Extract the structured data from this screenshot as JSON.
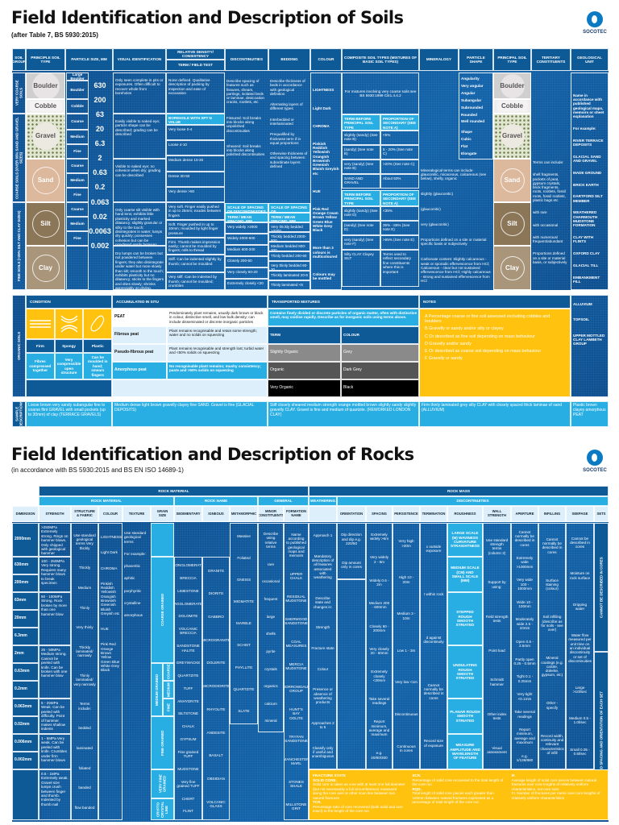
{
  "soils": {
    "title": "Field Identification and Description of Soils",
    "subtitle": "(after Table 7, BS 5930:2015)",
    "logo": "SOCOTEC",
    "headers": [
      "SOIL GROUP",
      "PRINCIPLE SOIL TYPE",
      "PARTICLE SIZE, MM",
      "VISUAL IDENTIFICATION",
      "RELATIVE DENSITY/ CONSISTENCY",
      "TERM / FIELD TEST",
      "DISCONTINUITIES",
      "BEDDING",
      "COLOUR",
      "COMPOSITE SOIL TYPES (MIXTURES OF BASIC SOIL TYPES)",
      "MINERALOGY",
      "PARTICLE SHAPE",
      "PRINCIPAL SOIL TYPE",
      "TERTIARY CONSTITUENTS",
      "GEOLOGICAL UNIT"
    ],
    "groups": [
      "VERY COARSE SOILS",
      "COARSE SOILS (OVER 65% SAND AND GRAVEL SIZES)",
      "FINE SOILS (>35% SILT AND CLAY SIZES)"
    ],
    "types": [
      "Boulder",
      "Cobble",
      "Gravel",
      "Sand",
      "Silt",
      "Clay"
    ],
    "size_terms": [
      "Large Boulder",
      "Boulder",
      "Cobble",
      "Coarse",
      "Medium",
      "Fine",
      "Coarse",
      "Medium",
      "Fine",
      "Coarse",
      "Medium",
      "Fine"
    ],
    "sizes": [
      "630",
      "200",
      "63",
      "20",
      "6.3",
      "2",
      "0.63",
      "0.2",
      "0.063",
      "0.02",
      "0.0063",
      "0.002"
    ],
    "visual": [
      "Only seen complete in pits or exposures. Often difficult to recover whole from boreholes",
      "Easily visible to naked eye; particle shape can be described; grading can be described",
      "Visible to naked eye; no cohesion when dry; grading can be described",
      "Only coarse silt visible with hand lens; exhibits little plasticity and marked dilatancy; slightly granular or silky to the touch; disintegrates in water; lumps dry quickly; possesses cohesion but can be powdered easily between fingers",
      "Dry lumps can be broken but not powdered between fingers; they also disintegrate under water but more slowly than silt; smooth to the touch; exhibits plasticity but no dilatancy; sticks to the fingers and dries slowly; shrinks appreciably on drying, usually showing cracks"
    ],
    "density": {
      "very_coarse": "None defined. Qualitative description of packing by inspection and ease of excavation",
      "spt_header": "BOREHOLE WITH SPT N VALUE",
      "coarse": [
        "Very loose 0-4",
        "Loose 4-10",
        "Medium dense 10-30",
        "Dense 30-50",
        "Very dense >50"
      ],
      "fine": [
        "Very soft. Finger easily pushed in up to 25mm; exudes between fingers",
        "Soft. Finger pushed in up to 10mm; moulded by light finger pressure",
        "Firm. Thumb makes impression easily; cannot be moulded by fingers; rolls to thread",
        "Stiff. Can be indented slightly by thumb; cannot be moulded",
        "Very stiff. Can be indented by thumb; cannot be moulded; crumbles"
      ]
    },
    "discontinuities": {
      "text": [
        "Describe spacing of features such as fissures, shears, partings, isolated beds or laminae, desiccation cracks, rootlets, etc",
        "Fissured: Soil breaks into blocks along unpolished discontinuities",
        "Sheared: Soil breaks into blocks along polished discontinuities"
      ],
      "scale_header": "SCALE OF SPACING OF DISCONTINUITIES",
      "term_header": "TERM / MEAN SPACING, MM",
      "scale": [
        "Very widely >2000",
        "Widely 2000-600",
        "Medium 600-200",
        "Closely 200-60",
        "Very closely 60-20",
        "Extremely closely <20"
      ]
    },
    "bedding": {
      "text": [
        "Describe thickness of beds in accordance with geological definition",
        "Alternating layers of different types",
        "Interbedded or interlaminated",
        "Prequalified by thickness term if in equal proportions",
        "Otherwise thickness of and spacing between subordinate layers defined"
      ],
      "scale_header": "SCALE OF SPACING OF DISCONTINUITIES",
      "term_header": "TERM / MEAN SPACING, MM",
      "scale": [
        "Very thickly bedded >2000",
        "Thickly bedded 2000-600",
        "Medium bedded 600-200",
        "Thinly bedded 200-60",
        "Very thinly bedded 60-20",
        "Thickly laminated 20-6",
        "Thinly laminated <6"
      ]
    },
    "colour": [
      "LIGHTNESS",
      "Light Dark",
      "CHROMA",
      "Pinkish Reddish Yellowish Orangish Brownish Greenish Bluish Greyish etc",
      "HUE",
      "Pink Red Orange Cream Brown Yellow Green Blue White Grey Black",
      "More than 3 colours is multicoloured",
      "Colours may be mottled"
    ],
    "composite": {
      "intro": "For mixtures involving very coarse soils see BS 5930:1999 Cl41.4.4.2",
      "head": [
        "TERM BEFORE PRINCIPAL SOIL TYPE",
        "PROPORTION OF SECONDARY (SEE NOTE A)"
      ],
      "coarse": [
        [
          "slightly (sandy) (See note B)",
          "<5%"
        ],
        [
          "(sandy) (See note B)",
          "5 - 20% (See note C)"
        ],
        [
          "very (sandy) (See note B)",
          ">20% (See note C)"
        ],
        [
          "SAND AND GRAVEL",
          "About 50%"
        ]
      ],
      "fine": [
        [
          "slightly (sandy) (See note D)",
          "<35%"
        ],
        [
          "(sandy) (See note D)",
          "35% - 65% (See note E)"
        ],
        [
          "very (sandy) (See note F)",
          ">65% (See note E)"
        ],
        [
          "Silty CLAY  Clayey SILT",
          "Terms used to reflect secondary fine constituents where this is important"
        ]
      ]
    },
    "mineralogy": [
      "Mineralogical terms can include: glauconitic, micaceous, calcareous (see below), shelly, organic",
      "slightly (glauconitic)",
      "(glauconitic)",
      "very (glauconitic)",
      "Proportions defined on a site or material specific basis or subjectively",
      "Carbonate content: Slightly calcareous - weak or sporadic effervescence from HCl; Calcareous - clear but not sustained effervescence from HCl; Highly calcareous - strong and sustained effervescence from HCl"
    ],
    "shape": [
      "Angularity",
      "Very angular",
      "Angular",
      "Subangular",
      "Subrounded",
      "Rounded",
      "Well rounded",
      "",
      "Shape",
      "Cubic",
      "Flat",
      "Elongate"
    ],
    "tertiary": [
      "Terms can include:",
      "shell fragments, pockets of peat, gypsum crystals, brick fragments, roots, rootlets, fossil roots, fossil rootlets, plastic bags etc",
      "with rare",
      "with occasional",
      "with numerous/ frequent/abundant",
      "Proportions defined on a site or material basis, or subjectively"
    ],
    "geological": [
      "Name in accordance with published geological maps, memoirs or sheet explanation",
      "For example:",
      "RIVER TERRACE DEPOSITS",
      "GLACIAL SAND AND GRAVEL",
      "MADE GROUND",
      "BRICK EARTH",
      "DARTFORD SILT MEMBER",
      "WEATHERED CHARMOUTH MUDSTONE FORMATION",
      "CLAY WITH FLINTS",
      "OXFORD CLAY",
      "GLACIAL TILL",
      "EMBANKMENT FILL"
    ],
    "geological_organic": [
      "ALLUVIUM",
      "TOPSOIL",
      "UPPER MOTTLED CLAY LAMBETH GROUP"
    ],
    "organic": {
      "label": "ORGANIC SOILS",
      "condition_header": "CONDITION",
      "accumulated_header": "ACCUMULATED IN SITU",
      "transported_header": "TRANSPORTED MIXTURES",
      "notes_header": "NOTES",
      "conditions": [
        {
          "term": "Firm",
          "desc": "Fibres compressed together"
        },
        {
          "term": "Spongy",
          "desc": "Very compressible open structure"
        },
        {
          "term": "Plastic",
          "desc": "Can be moulded in hand; smears fingers"
        }
      ],
      "accumulated": [
        {
          "term": "PEAT",
          "desc": "Predominately plant remains, usually dark brown or black in colour, distinctive smell, and low bulk density; can include disseminated or discrete inorganic particles"
        },
        {
          "term": "Fibrous peat",
          "desc": "Plant remains recognisable and retain some strength; water and no solids on squeezing"
        },
        {
          "term": "Pseudo-fibrous peat",
          "desc": "Plant remains recognisable and strength lost; turbid water and <50% solids on squeezing"
        },
        {
          "term": "Amorphous peat",
          "desc": "No recognisable plant remains; mushy consistency; paste and >50% solids on squeezing"
        }
      ],
      "transported_desc": "Contains finely divided or discrete particles of organic matter, often with distinctive smell, may oxidise rapidly. Describe as for inorganic soils using terms above.",
      "term_header": "TERM",
      "colour_header": "COLOUR",
      "transported": [
        {
          "term": "Slightly Organic",
          "colour": "Grey"
        },
        {
          "term": "Organic",
          "colour": "Dark Grey"
        },
        {
          "term": "Very Organic",
          "colour": "Black"
        }
      ],
      "notes": [
        "A  Percentage coarse or fine soil assessed excluding cobbles and boulders",
        "B  Gravelly or sandy and/or silty or clayey",
        "C  Or described as fine soil depending on mass behaviour",
        "D  Gravelly and/or sandy",
        "E  Or described as coarse soil depending on mass behaviour",
        "F  Gravelly or sandy"
      ]
    },
    "samples": {
      "label": "SAMPLE DESCRIPTIONS",
      "items": [
        "Loose brown very sandy subangular fine to coarse flint GRAVEL with small pockets (up to 30mm) of clay (TERRACE GRAVELS)",
        "Medium dense light brown gravelly clayey fine SAND. Gravel is fine (GLACIAL DEPOSITS)",
        "Stiff closely sheared medium strength orange mottled brown slightly sandy slightly gravelly CLAY. Gravel is fine and medium of quartzite. (REWORKED LONDON CLAY)",
        "Firm thinly laminated grey silty CLAY with closely spaced thick laminae of sand (ALLUVIUM)",
        "Plastic brown clayey amorphous PEAT"
      ]
    },
    "colors": {
      "panel": "#0e5a9e",
      "header": "#0d5a96",
      "light": "#29aee3",
      "yellow": "#ffc20e"
    }
  },
  "rocks": {
    "title": "Field Identification and Description of Rocks",
    "subtitle": "(in accordance with BS 5930:2015 and BS EN ISO 14689-1)",
    "logo": "SOCOTEC",
    "group1": [
      "ROCK MATERIAL",
      "ROCK MASS"
    ],
    "group2": [
      "ROCK MATERIAL",
      "ROCK NAME",
      "GENERAL",
      "WEATHERING",
      "DISCONTINUITIES"
    ],
    "headers": [
      "DIMENSION",
      "STRENGTH",
      "STRUCTURE & FABRIC",
      "COLOUR",
      "TEXTURE",
      "GRAIN SIZE",
      "SEDIMENTARY",
      "IGNEOUS",
      "METAMORPHIC",
      "MINOR CONSTITUENTS",
      "FORMATION NAME",
      "",
      "ORIENTATION",
      "SPACING",
      "PERSISTENCE",
      "TERMINATION",
      "ROUGHNESS",
      "WALL STRENGTH",
      "APERTURE",
      "INFILLING",
      "SEEPAGE",
      "SETS"
    ],
    "dimension": [
      "2000mm",
      "630mm",
      "200mm",
      "63mm",
      "20mm",
      "6.3mm",
      "2mm",
      "0.63mm",
      "0.2mm",
      "0.063mm",
      "0.02mm",
      "0.006mm",
      "0.002mm",
      ""
    ],
    "strength": [
      ">250MPa Extremely strong. Rings on hammer blows. Only chipped with geological hammer",
      "100 - 250MPa Very strong. Requires many hammer blows to break specimen",
      "50 - 100MPa Strong. Rock broken by more than one hammer blow",
      "25 - 50MPa Medium strong. Cannot be peeled with knife. Can be broken with one hammer blow",
      "5 - 25MPa Weak. Can be peeled with difficulty. Point of hammer makes shallow indents",
      "1 - 5MPa Very weak. Can be peeled with knife. Crumbles under firm hammer blows",
      "0.6 - 1MPa Extremely weak. Gravel size lumps crush between finger and thumb. Indented by thumb nail"
    ],
    "structure": [
      "Use standard geological terms Very thickly",
      "Thickly",
      "Medium",
      "Thinly",
      "Very thinly",
      "Thickly laminated/ narrowly",
      "Thinly laminated/ very narrowly",
      "Terms include:",
      "bedded",
      "laminated",
      "foliated",
      "banded",
      "flow banded"
    ],
    "colour": [
      "LIGHTNESS",
      "Light Dark",
      "CHROMA",
      "Pinkish Reddish Yellowish Orangish Brownish Greenish Bluish Greyish etc",
      "HUE",
      "Pink Red Orange Brown Yellow Green Blue White Grey Black"
    ],
    "texture": [
      "Use standard geological terms",
      "For example:",
      "phaneritic",
      "aphitic",
      "porphyritic",
      "crystalline",
      "amorphous"
    ],
    "grain": [
      "COARSE GRAINED",
      "MEDIUM GRAINED",
      "COARSE",
      "MEDIUM",
      "FINE",
      "FINE GRAINED",
      "VERY FINE GRAINED",
      "CRYPTO CRYSTAL LINE"
    ],
    "sedimentary": [
      "CONGLOMERATE",
      "BRECCIA",
      "LIMESTONE",
      "AGGLOMERATE",
      "DOLOMITE",
      "VOLCANIC BRECCIA",
      "SANDSTONE HALITE",
      "GREYWACKE",
      "QUARTZITE",
      "TUFF",
      "ANHYDRITE",
      "SILTSTONE",
      "CHALK",
      "GYPSUM",
      "Fine grained TUFF",
      "MUDSTONE",
      "Very fine grained TUFF",
      "CHERT",
      "FLINT"
    ],
    "igneous": [
      "GRANITE",
      "DIORITE",
      "GABBRO",
      "MICROGRANITE",
      "DOLERITE",
      "MICRODIORITE",
      "RHYOLITE",
      "ANDESITE",
      "BASALT",
      "OBSIDIAN",
      "VOLCANIC GLASS"
    ],
    "metamorphic": [
      "Massive",
      "Foliated",
      "GNEISS",
      "MIGMATITE",
      "MARBLE",
      "SCHIST",
      "PHYLLITE",
      "QUARTZITE",
      "SLATE"
    ],
    "minor": [
      "Describe using relative terms",
      "rare",
      "occasional",
      "frequent",
      "large",
      "shells",
      "pyrite",
      "crystals",
      "organics",
      "calcium",
      "mineral"
    ],
    "formation": [
      "Name according to published geological maps and memoirs",
      "UPPER CHALK",
      "RESIDUAL MUDSTONE",
      "SHERWOOD SANDSTONE",
      "COAL MEASURES",
      "MERCIA MUDSTONE",
      "BORROWDALE GROUP",
      "HUNT'S BAY OOLITE",
      "TRYFAN SANDSTONE",
      "MANCHESTER MARL",
      "STONES SHALE",
      "MILLSTONE GRIT"
    ],
    "weathering": [
      "Approach 1",
      "Mandatory description of all features associated with weathering",
      "Describe state and changes in:",
      "Strength",
      "Fracture state",
      "Colour",
      "Presence or absence of weathering products",
      "Approaches 2 to 5",
      "Classify only if useful and unambiguous"
    ],
    "orientation": [
      "Dip direction and dip e.g. 220/50",
      "Dip amount only in cores"
    ],
    "spacing": [
      "Extremely widely >6m",
      "Very widely 2 - 6m",
      "Widely 0.6 - 2m",
      "Medium 200 - 600mm",
      "Closely 60 - 200mm",
      "Very closely 20 - 60mm",
      "Extremely closely <20mm",
      "Take several readings",
      "Report minimum, average and maximum",
      "e.g. 20/80/300"
    ],
    "persistence": [
      "Very high >20m",
      "High 10 - 20m",
      "Medium 3 - 10m",
      "Low 1 - 3m",
      "Very low <1m",
      "Discontinuous",
      "Continuous in cores"
    ],
    "termination": [
      "x outside exposure",
      "r within rock",
      "d against discontinuity",
      "Cannot normally be described in cores",
      "Record size of exposure"
    ],
    "roughness": [
      "LARGE SCALE (M) WAVINESS CURVATURE STRAIGHTNESS",
      "MEDIUM SCALE (CM) AND SMALL SCALE (MM)",
      "STEPPED ROUGH SMOOTH STRIATED",
      "UNDULATING ROUGH SMOOTH STRIATED",
      "PLANAR ROUGH SMOOTH STRIATED",
      "MEASURE AMPLITUDE AND WAVELENGTH OF FEATURE"
    ],
    "wall": [
      "Use standard strength terms (column 2)",
      "Support by using:",
      "Field strength tests",
      "Point load",
      "Schmidt hammer",
      "Other index tests",
      "Visual assessment"
    ],
    "aperture": [
      "Cannot normally be described in cores",
      "Extremely wide >1000mm",
      "Very wide 100 - 1000mm",
      "Wide 10 - 100mm",
      "Moderately wide 2.5 - 10mm",
      "Open 0.5 - 2.5mm",
      "Partly open 0.25 - 0.5mm",
      "Tight 0.1 - 0.25mm",
      "Very tight <0.1mm",
      "Take several readings",
      "Report minimum, average and maximum",
      "e.g. 1/136/880"
    ],
    "infilling": [
      "Cannot normally be described in cores",
      "Surface staining (colour)",
      "Soil infilling (describe as for soils - see over)",
      "Mineral coatings (e.g. calcite, dolerite, gypsum, etc)",
      "Other - specify",
      "Record width, continuity and relevant characteristics of infill"
    ],
    "seepage": [
      "Cannot be described in cores",
      "Moisture on rock surface",
      "Dripping water",
      "Water flow measured per unit time on an individual discontinuity or set of discontinuities",
      "Large >10l/sec",
      "Medium 0.5 - 1.0l/sec",
      "Small 0.05 - 0.5l/sec"
    ],
    "sets": [
      "CANNOT BE DESCRIBED IN CORES",
      "RECORD SPACING AND ORIENTATION OF EACH SET"
    ],
    "notes": [
      [
        "FRACTURE STATE",
        "SOLID CORE.",
        "Solid core is taken as core with at least one full diameter (but not necessarily a full circumference) measured along the core axis or other scan line between two natural fractures",
        "TCR.",
        "Percentage ratio of core recovered (both solid and non-intact) to the length of the core run"
      ],
      [
        "SCR.",
        "Percentage of solid core recovered to the total length of the core run",
        "RQD.",
        "Total length of solid core pieces each greater than 100mm between natural fractures expressed as a percentage of total length of the core run"
      ],
      [
        "IF.",
        "Average length of solid core pieces between natural fractures over core lengths of relatively uniform characteristics, not core runs",
        "FI. Number of fractures per metre over core lengths of relatively uniform characteristics"
      ]
    ]
  }
}
